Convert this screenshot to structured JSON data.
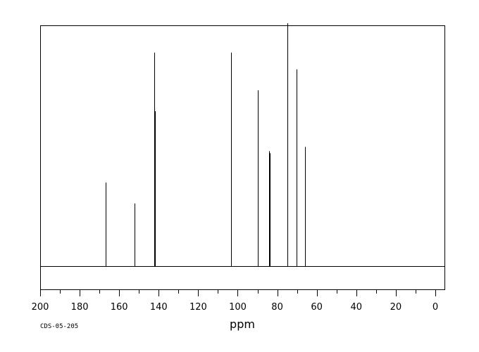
{
  "chart_data": {
    "type": "line",
    "title": "",
    "xlabel": "ppm",
    "ylabel": "",
    "sample_id": "CDS-05-205",
    "xlim": [
      200,
      -5
    ],
    "x_reversed": true,
    "ylim": [
      -0.13,
      1.13
    ],
    "grid": false,
    "legend": "none",
    "x_ticks": [
      200,
      180,
      160,
      140,
      120,
      100,
      80,
      60,
      40,
      20,
      0
    ],
    "x_minor_step": 10,
    "peaks": [
      {
        "ppm": 166.8,
        "intensity": 0.38
      },
      {
        "ppm": 152.4,
        "intensity": 0.28
      },
      {
        "ppm": 142.2,
        "intensity": 1.0
      },
      {
        "ppm": 142.0,
        "intensity": 0.72
      },
      {
        "ppm": 103.3,
        "intensity": 1.0
      },
      {
        "ppm": 103.5,
        "intensity": 0.07
      },
      {
        "ppm": 89.9,
        "intensity": 0.82
      },
      {
        "ppm": 90.0,
        "intensity": 0.11
      },
      {
        "ppm": 84.0,
        "intensity": 0.53
      },
      {
        "ppm": 83.6,
        "intensity": 0.52
      },
      {
        "ppm": 83.8,
        "intensity": 0.07
      },
      {
        "ppm": 74.7,
        "intensity": 1.14
      },
      {
        "ppm": 74.8,
        "intensity": 0.14
      },
      {
        "ppm": 70.3,
        "intensity": 0.92
      },
      {
        "ppm": 70.4,
        "intensity": 0.06
      },
      {
        "ppm": 65.9,
        "intensity": 0.55
      },
      {
        "ppm": 66.1,
        "intensity": 0.43
      }
    ],
    "colors": {
      "line": "#000000",
      "frame": "#000000",
      "background": "#ffffff"
    }
  }
}
